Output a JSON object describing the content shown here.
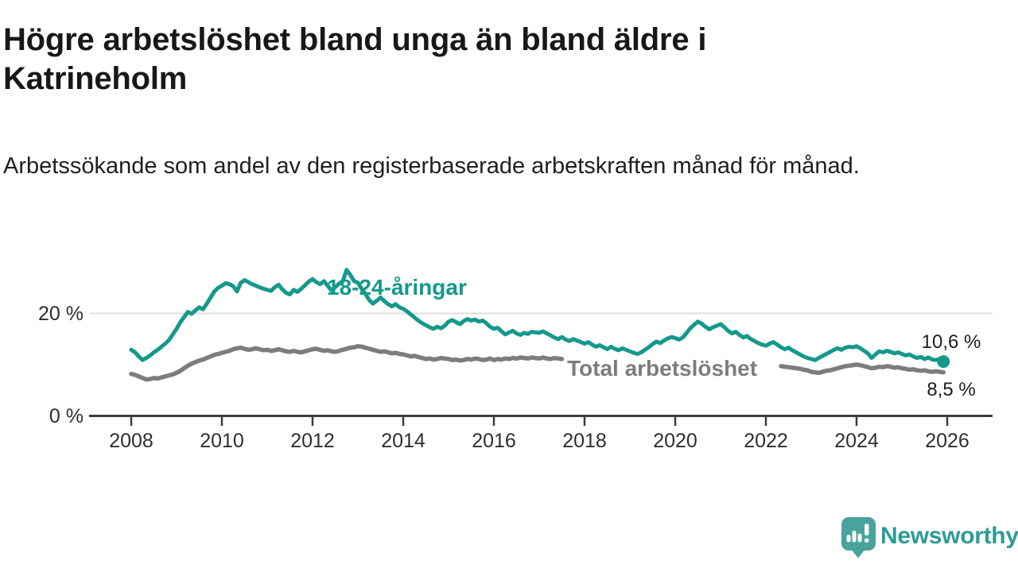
{
  "header": {
    "title": "Högre arbetslöshet bland unga än bland äldre i Katrineholm",
    "subtitle": "Arbetssökande som andel av den registerbaserade arbetskraften månad för månad."
  },
  "footer": {
    "brand": "Newsworthy"
  },
  "colors": {
    "young_series": "#14998b",
    "total_series": "#7d7d81",
    "axis": "#3d3d3d",
    "gridline": "#dedede",
    "end_labels": "#1d1d1d",
    "brand_teal": "#2d9c93",
    "logo_bubble": "#47a39c"
  },
  "chart_data": {
    "type": "line",
    "title": "Högre arbetslöshet bland unga än bland äldre i Katrineholm",
    "subtitle": "Arbetssökande som andel av den registerbaserade arbetskraften månad för månad.",
    "unit": "percent of register-based labour force",
    "x_start_year": 2008,
    "x_interval_months": 1,
    "x_axis_ticks": [
      2008,
      2010,
      2012,
      2014,
      2016,
      2018,
      2020,
      2022,
      2024,
      2026
    ],
    "x_axis_tick_labels": [
      "2008",
      "2010",
      "2012",
      "2014",
      "2016",
      "2018",
      "2020",
      "2022",
      "2024",
      "2026"
    ],
    "y_axis_tick_labels": [
      "20 %",
      "0 %"
    ],
    "y_axis_tick_values": [
      20,
      0
    ],
    "ylim": [
      0,
      29
    ],
    "grid": "single horizontal gridline at 20 %",
    "legend": "inline labels on lines",
    "series": [
      {
        "label": "18-24-åringar",
        "color": "#14998b",
        "end_label": "10,6 %",
        "end_value": 10.6,
        "end_dot": true,
        "stroke_width": 5,
        "values": [
          12.9,
          12.4,
          11.6,
          10.9,
          11.3,
          11.8,
          12.4,
          12.9,
          13.5,
          14.1,
          14.8,
          15.9,
          17.0,
          18.3,
          19.3,
          20.3,
          19.9,
          20.6,
          21.2,
          20.8,
          21.9,
          23.1,
          24.3,
          25.0,
          25.4,
          25.9,
          25.7,
          25.3,
          24.3,
          26.0,
          26.5,
          26.1,
          25.7,
          25.4,
          25.1,
          24.8,
          24.6,
          24.4,
          25.1,
          25.6,
          24.7,
          24.0,
          23.7,
          24.6,
          24.2,
          24.8,
          25.5,
          26.2,
          26.7,
          26.1,
          25.7,
          26.3,
          25.4,
          24.5,
          25.1,
          25.8,
          26.3,
          28.5,
          27.5,
          26.3,
          26.0,
          24.8,
          23.8,
          22.6,
          21.9,
          22.5,
          23.1,
          22.4,
          21.8,
          21.4,
          21.8,
          21.2,
          20.9,
          20.4,
          19.8,
          19.2,
          18.6,
          18.1,
          17.7,
          17.3,
          17.0,
          17.4,
          17.1,
          17.6,
          18.4,
          18.7,
          18.3,
          17.9,
          18.5,
          18.9,
          18.6,
          18.8,
          18.4,
          18.6,
          18.1,
          17.4,
          17.0,
          17.2,
          16.5,
          15.9,
          16.3,
          16.6,
          16.1,
          15.8,
          16.2,
          16.0,
          16.4,
          16.3,
          16.2,
          16.5,
          16.1,
          15.7,
          15.3,
          15.0,
          15.4,
          14.9,
          14.6,
          15.0,
          14.7,
          14.4,
          14.1,
          14.4,
          13.9,
          13.5,
          13.8,
          13.4,
          13.0,
          13.5,
          13.1,
          12.8,
          13.2,
          12.9,
          12.6,
          12.3,
          12.1,
          12.4,
          12.9,
          13.4,
          14.0,
          14.5,
          14.2,
          14.7,
          15.1,
          15.4,
          15.2,
          14.9,
          15.3,
          16.2,
          17.1,
          17.8,
          18.4,
          18.0,
          17.4,
          16.9,
          17.3,
          17.6,
          17.9,
          17.3,
          16.6,
          16.1,
          16.4,
          15.8,
          15.3,
          15.6,
          15.0,
          14.6,
          14.2,
          13.9,
          13.7,
          14.1,
          14.4,
          13.9,
          13.4,
          13.0,
          13.3,
          12.8,
          12.4,
          12.0,
          11.6,
          11.3,
          11.1,
          10.9,
          11.3,
          11.7,
          12.1,
          12.5,
          12.9,
          13.2,
          12.9,
          13.3,
          13.5,
          13.4,
          13.6,
          13.2,
          12.7,
          12.2,
          11.3,
          12.0,
          12.6,
          12.4,
          12.7,
          12.5,
          12.2,
          12.4,
          12.1,
          11.8,
          12.0,
          11.6,
          11.3,
          11.5,
          11.1,
          11.4,
          11.0,
          10.9,
          11.1,
          10.6
        ]
      },
      {
        "label": "Total arbetslöshet",
        "color": "#7d7d81",
        "end_label": "8,5 %",
        "end_value": 8.5,
        "end_dot": false,
        "stroke_width": 5.5,
        "note": "line visually interrupted where its label is printed (mid-2017 to mid-2022)",
        "values": [
          8.2,
          8.0,
          7.7,
          7.4,
          7.1,
          7.2,
          7.4,
          7.3,
          7.5,
          7.7,
          7.9,
          8.1,
          8.4,
          8.8,
          9.3,
          9.8,
          10.2,
          10.5,
          10.8,
          11.0,
          11.3,
          11.6,
          11.9,
          12.1,
          12.3,
          12.5,
          12.7,
          13.0,
          13.2,
          13.3,
          13.1,
          12.9,
          13.0,
          13.2,
          13.0,
          12.8,
          12.9,
          12.7,
          12.8,
          13.0,
          12.8,
          12.6,
          12.5,
          12.7,
          12.5,
          12.4,
          12.6,
          12.8,
          13.0,
          13.1,
          12.9,
          12.7,
          12.8,
          12.6,
          12.5,
          12.7,
          12.9,
          13.1,
          13.3,
          13.4,
          13.6,
          13.5,
          13.3,
          13.1,
          12.9,
          12.7,
          12.5,
          12.6,
          12.4,
          12.2,
          12.3,
          12.1,
          12.0,
          11.8,
          11.6,
          11.7,
          11.5,
          11.3,
          11.1,
          11.2,
          11.0,
          11.1,
          11.3,
          11.2,
          11.1,
          10.9,
          11.0,
          10.8,
          10.9,
          11.1,
          11.0,
          11.2,
          11.1,
          10.9,
          11.0,
          11.2,
          10.9,
          11.1,
          11.0,
          11.2,
          11.1,
          11.3,
          11.2,
          11.4,
          11.3,
          11.2,
          11.4,
          11.3,
          11.2,
          11.4,
          11.2,
          11.1,
          11.3,
          11.2,
          11.1,
          null,
          null,
          null,
          null,
          null,
          null,
          null,
          null,
          null,
          null,
          null,
          null,
          null,
          null,
          null,
          null,
          null,
          null,
          null,
          null,
          null,
          null,
          null,
          null,
          null,
          null,
          null,
          null,
          null,
          null,
          null,
          null,
          null,
          null,
          null,
          null,
          null,
          null,
          null,
          null,
          null,
          null,
          null,
          null,
          null,
          null,
          null,
          null,
          null,
          null,
          null,
          null,
          null,
          null,
          null,
          null,
          null,
          9.7,
          9.6,
          9.5,
          9.4,
          9.3,
          9.2,
          9.0,
          8.9,
          8.6,
          8.5,
          8.4,
          8.6,
          8.8,
          8.9,
          9.1,
          9.3,
          9.5,
          9.7,
          9.8,
          9.9,
          10.0,
          9.9,
          9.7,
          9.5,
          9.3,
          9.4,
          9.6,
          9.5,
          9.7,
          9.6,
          9.4,
          9.5,
          9.3,
          9.2,
          9.0,
          9.1,
          8.9,
          8.8,
          8.9,
          8.7,
          8.6,
          8.7,
          8.6,
          8.5
        ]
      }
    ]
  }
}
